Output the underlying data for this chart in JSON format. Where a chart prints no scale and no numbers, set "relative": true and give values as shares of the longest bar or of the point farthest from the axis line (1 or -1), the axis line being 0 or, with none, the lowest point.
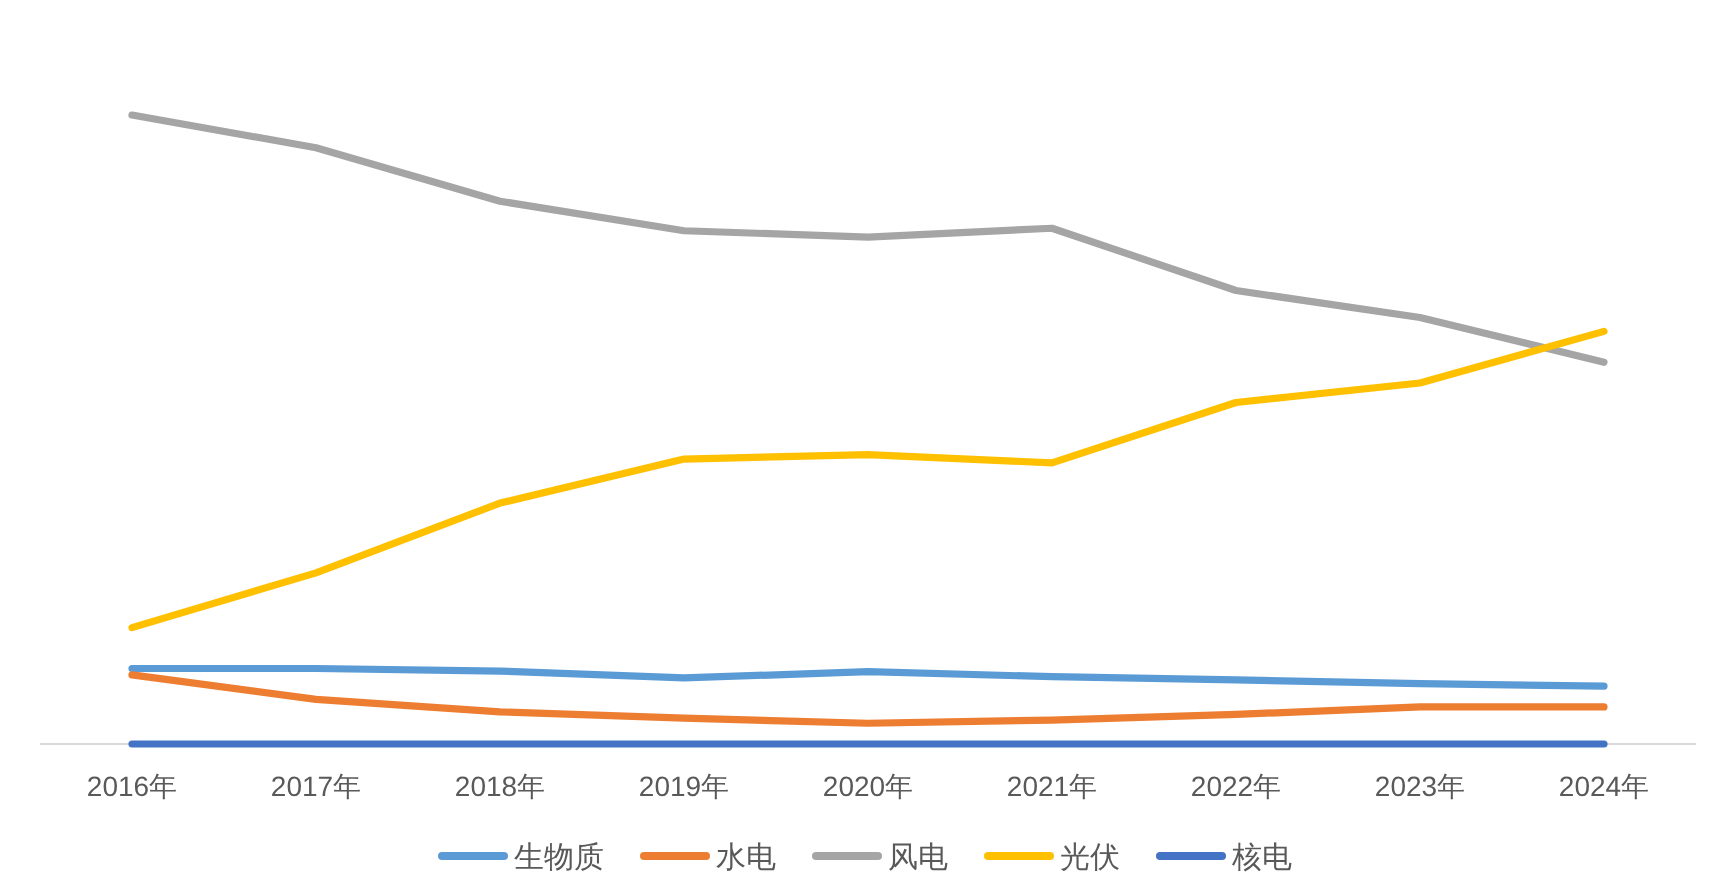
{
  "chart_data": {
    "type": "line",
    "relative": true,
    "legend": "bottom",
    "categories": [
      "2016年",
      "2017年",
      "2018年",
      "2019年",
      "2020年",
      "2021年",
      "2022年",
      "2023年",
      "2024年"
    ],
    "series": [
      {
        "name": "生物质",
        "color": "#5b9bd5",
        "values": [
          0.12,
          0.12,
          0.116,
          0.105,
          0.115,
          0.107,
          0.102,
          0.096,
          0.092
        ]
      },
      {
        "name": "水电",
        "color": "#ed7d31",
        "values": [
          0.11,
          0.071,
          0.051,
          0.041,
          0.033,
          0.038,
          0.047,
          0.059,
          0.059
        ]
      },
      {
        "name": "风电",
        "color": "#a5a5a5",
        "values": [
          1,
          0.948,
          0.863,
          0.816,
          0.806,
          0.82,
          0.721,
          0.678,
          0.607
        ]
      },
      {
        "name": "光伏",
        "color": "#ffc000",
        "values": [
          0.185,
          0.272,
          0.383,
          0.453,
          0.46,
          0.447,
          0.543,
          0.574,
          0.656
        ]
      },
      {
        "name": "核电",
        "color": "#4472c4",
        "values": [
          0,
          0,
          0,
          0,
          0,
          0,
          0,
          0,
          0
        ]
      }
    ]
  }
}
